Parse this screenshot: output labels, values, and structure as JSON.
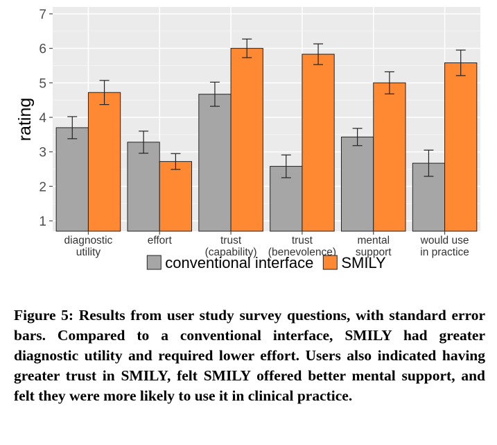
{
  "chart_data": {
    "type": "bar",
    "ylabel": "rating",
    "xlabel": "",
    "ylim": [
      0.7,
      7.2
    ],
    "yticks": [
      "1",
      "2",
      "3",
      "4",
      "5",
      "6",
      "7"
    ],
    "grid": true,
    "legend_position": "bottom",
    "categories": [
      [
        "diagnostic",
        "utility"
      ],
      [
        "effort"
      ],
      [
        "trust",
        "(capability)"
      ],
      [
        "trust",
        "(benevolence)"
      ],
      [
        "mental",
        "support"
      ],
      [
        "would use",
        "in practice"
      ]
    ],
    "series": [
      {
        "name": "conventional interface",
        "color": "#a6a6a6",
        "values": [
          3.7,
          3.28,
          4.67,
          2.58,
          3.43,
          2.67
        ],
        "errors": [
          0.32,
          0.32,
          0.35,
          0.33,
          0.25,
          0.38
        ]
      },
      {
        "name": "SMILY",
        "color": "#ff8833",
        "values": [
          4.72,
          2.72,
          6.0,
          5.83,
          5.0,
          5.58
        ],
        "errors": [
          0.35,
          0.23,
          0.27,
          0.3,
          0.32,
          0.37
        ]
      }
    ]
  },
  "caption": "Figure 5: Results from user study survey questions, with standard error bars. Compared to a conventional interface, SMILY had greater diagnostic utility and required lower effort. Users also indicated having greater trust in SMILY, felt SMILY offered better mental support, and felt they were more likely to use it in clinical practice."
}
